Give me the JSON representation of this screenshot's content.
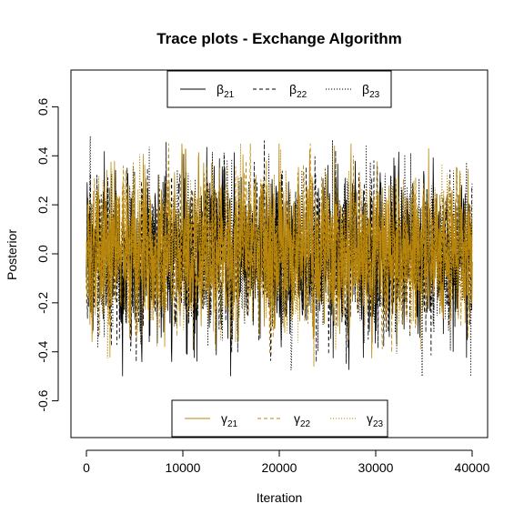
{
  "chart_data": {
    "type": "line",
    "title": "Trace plots - Exchange Algorithm",
    "xlabel": "Iteration",
    "ylabel": "Posterior",
    "xlim": [
      0,
      40000
    ],
    "ylim": [
      -0.75,
      0.75
    ],
    "x_ticks": [
      0,
      10000,
      20000,
      30000,
      40000
    ],
    "x_tick_labels": [
      "0",
      "10000",
      "20000",
      "30000",
      "40000"
    ],
    "y_ticks": [
      -0.6,
      -0.4,
      -0.2,
      0.0,
      0.2,
      0.4,
      0.6
    ],
    "y_tick_labels": [
      "-0.6",
      "-0.4",
      "-0.2",
      "0.0",
      "0.2",
      "0.4",
      "0.6"
    ],
    "grid": false,
    "iterations": 40000,
    "colors": {
      "beta": "#000000",
      "gamma": "#b8860b"
    },
    "series": [
      {
        "group": "beta",
        "name": "β",
        "sub": "21",
        "linestyle": "solid",
        "color": "#000000",
        "mean": 0.0,
        "sd": 0.16,
        "min": -0.5,
        "max": 0.48
      },
      {
        "group": "beta",
        "name": "β",
        "sub": "22",
        "linestyle": "dashed",
        "color": "#000000",
        "mean": 0.0,
        "sd": 0.16,
        "min": -0.5,
        "max": 0.48
      },
      {
        "group": "beta",
        "name": "β",
        "sub": "23",
        "linestyle": "dotted",
        "color": "#000000",
        "mean": 0.0,
        "sd": 0.16,
        "min": -0.5,
        "max": 0.48
      },
      {
        "group": "gamma",
        "name": "γ",
        "sub": "21",
        "linestyle": "solid",
        "color": "#b8860b",
        "mean": 0.02,
        "sd": 0.15,
        "min": -0.46,
        "max": 0.45
      },
      {
        "group": "gamma",
        "name": "γ",
        "sub": "22",
        "linestyle": "dashed",
        "color": "#b8860b",
        "mean": 0.02,
        "sd": 0.15,
        "min": -0.46,
        "max": 0.45
      },
      {
        "group": "gamma",
        "name": "γ",
        "sub": "23",
        "linestyle": "dotted",
        "color": "#b8860b",
        "mean": 0.02,
        "sd": 0.15,
        "min": -0.46,
        "max": 0.45
      }
    ],
    "legends": [
      {
        "position": "top",
        "entries": [
          "β21",
          "β22",
          "β23"
        ]
      },
      {
        "position": "bottom",
        "entries": [
          "γ21",
          "γ22",
          "γ23"
        ]
      }
    ]
  }
}
